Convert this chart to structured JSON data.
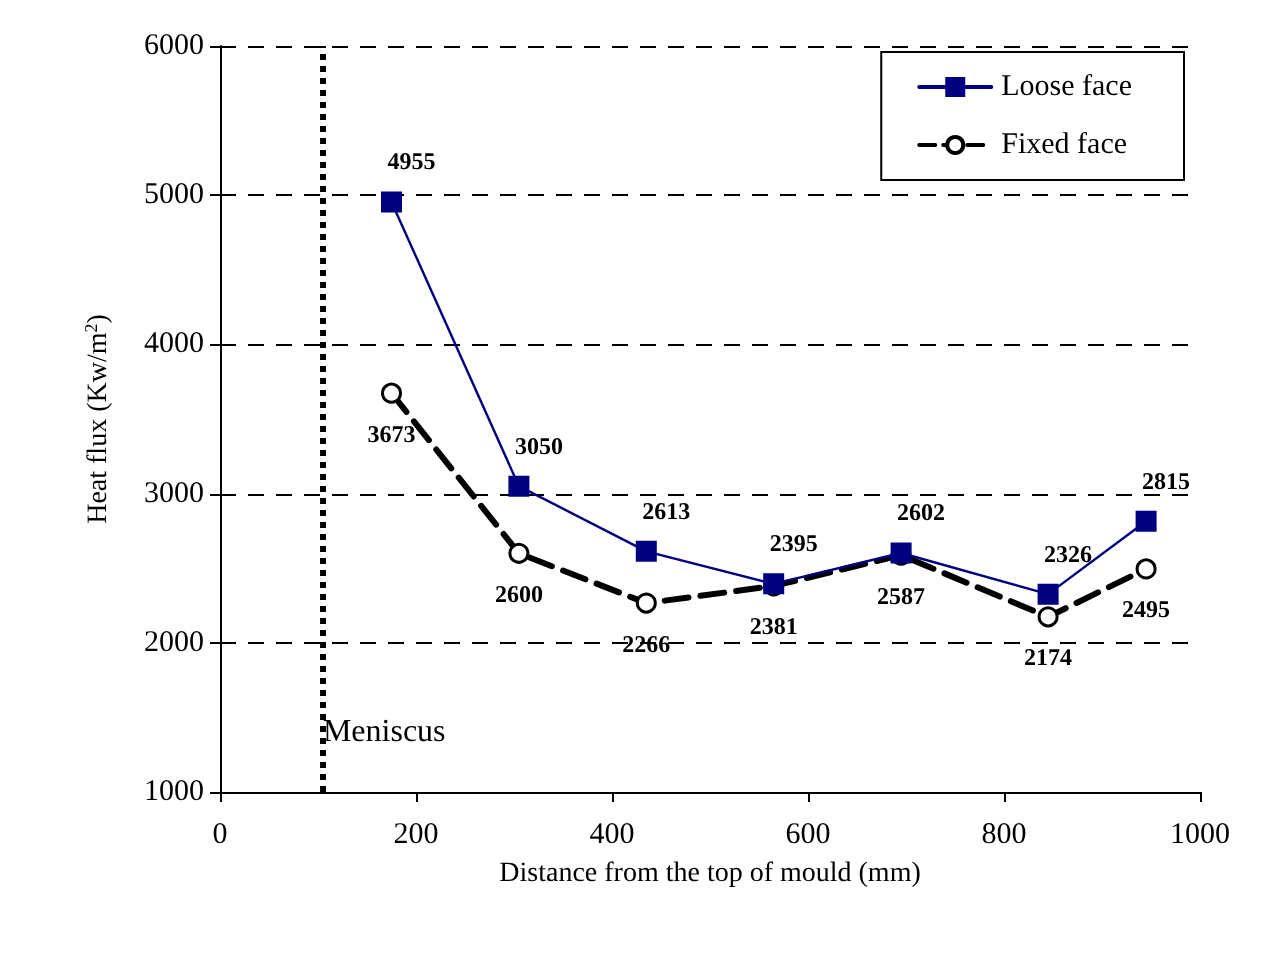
{
  "chart_data": {
    "type": "line",
    "xlabel": "Distance from the top of mould (mm)",
    "ylabel": "Heat flux (Kw/m$^{2}$)",
    "x": [
      175,
      305,
      435,
      565,
      695,
      845,
      945
    ],
    "series": [
      {
        "name": "Loose face",
        "color": "#000080",
        "values": [
          4955,
          3050,
          2613,
          2395,
          2602,
          2326,
          2815
        ],
        "marker": "square",
        "line_style": "solid"
      },
      {
        "name": "Fixed face",
        "color": "#000000",
        "values": [
          3673,
          2600,
          2266,
          2381,
          2587,
          2174,
          2495
        ],
        "marker": "circle",
        "line_style": "dashed"
      }
    ],
    "xlim": [
      0,
      1000
    ],
    "xticks": [
      0,
      200,
      400,
      600,
      800,
      1000
    ],
    "ylim": [
      1000,
      6000
    ],
    "yticks": [
      1000,
      2000,
      3000,
      4000,
      5000,
      6000
    ],
    "grid": "y",
    "legend": "top right",
    "data_labels": true,
    "ref_lines": [
      {
        "axis": "x",
        "value": 105,
        "label": "Meniscus",
        "color": "#000000",
        "line_style": "dotted"
      }
    ]
  }
}
